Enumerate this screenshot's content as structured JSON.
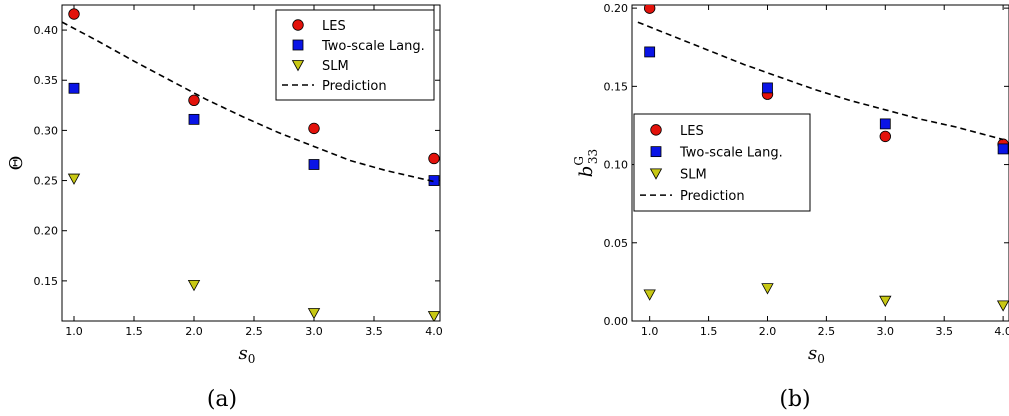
{
  "chart_data": [
    {
      "type": "scatter",
      "panel_label": "(a)",
      "xlabel_main": "s",
      "xlabel_sub": "0",
      "ylabel": "Θ",
      "xlim": [
        0.9,
        4.05
      ],
      "ylim": [
        0.11,
        0.425
      ],
      "xticks": [
        1.0,
        1.5,
        2.0,
        2.5,
        3.0,
        3.5,
        4.0
      ],
      "xtick_labels": [
        "1.0",
        "1.5",
        "2.0",
        "2.5",
        "3.0",
        "3.5",
        "4.0"
      ],
      "yticks": [
        0.15,
        0.2,
        0.25,
        0.3,
        0.35,
        0.4
      ],
      "ytick_labels": [
        "0.15",
        "0.20",
        "0.25",
        "0.30",
        "0.35",
        "0.40"
      ],
      "legend_position": "top-right",
      "series": [
        {
          "name": "LES",
          "marker": "circle",
          "color": "#e3120b",
          "x": [
            1,
            2,
            3,
            4
          ],
          "y": [
            0.416,
            0.33,
            0.302,
            0.272
          ]
        },
        {
          "name": "Two-scale Lang.",
          "marker": "square",
          "color": "#0a14e6",
          "x": [
            1,
            2,
            3,
            4
          ],
          "y": [
            0.342,
            0.311,
            0.266,
            0.25
          ]
        },
        {
          "name": "SLM",
          "marker": "triangle-down",
          "color": "#c8c814",
          "x": [
            1,
            2,
            3,
            4
          ],
          "y": [
            0.252,
            0.146,
            0.118,
            0.115
          ]
        },
        {
          "name": "Prediction",
          "marker": "dashed-line",
          "color": "#000000",
          "x": [
            0.9,
            1.2,
            1.5,
            1.8,
            2.1,
            2.4,
            2.7,
            3.0,
            3.3,
            3.6,
            4.0
          ],
          "y": [
            0.408,
            0.389,
            0.369,
            0.35,
            0.331,
            0.314,
            0.298,
            0.284,
            0.27,
            0.26,
            0.249
          ]
        }
      ]
    },
    {
      "type": "scatter",
      "panel_label": "(b)",
      "xlabel_main": "s",
      "xlabel_sub": "0",
      "ylabel_main": "b",
      "ylabel_sup": "G",
      "ylabel_sub": "33",
      "xlim": [
        0.85,
        4.05
      ],
      "ylim": [
        0.0,
        0.202
      ],
      "xticks": [
        1.0,
        1.5,
        2.0,
        2.5,
        3.0,
        3.5,
        4.0
      ],
      "xtick_labels": [
        "1.0",
        "1.5",
        "2.0",
        "2.5",
        "3.0",
        "3.5",
        "4.0"
      ],
      "yticks": [
        0.0,
        0.05,
        0.1,
        0.15,
        0.2
      ],
      "ytick_labels": [
        "0.00",
        "0.05",
        "0.10",
        "0.15",
        "0.20"
      ],
      "legend_position": "center-left",
      "series": [
        {
          "name": "LES",
          "marker": "circle",
          "color": "#e3120b",
          "x": [
            1,
            2,
            3,
            4
          ],
          "y": [
            0.2,
            0.145,
            0.118,
            0.113
          ]
        },
        {
          "name": "Two-scale Lang.",
          "marker": "square",
          "color": "#0a14e6",
          "x": [
            1,
            2,
            3,
            4
          ],
          "y": [
            0.172,
            0.149,
            0.126,
            0.11
          ]
        },
        {
          "name": "SLM",
          "marker": "triangle-down",
          "color": "#c8c814",
          "x": [
            1,
            2,
            3,
            4
          ],
          "y": [
            0.017,
            0.021,
            0.013,
            0.01
          ]
        },
        {
          "name": "Prediction",
          "marker": "dashed-line",
          "color": "#000000",
          "x": [
            0.9,
            1.2,
            1.5,
            1.8,
            2.1,
            2.4,
            2.7,
            3.0,
            3.3,
            3.6,
            4.0
          ],
          "y": [
            0.191,
            0.182,
            0.173,
            0.164,
            0.156,
            0.148,
            0.141,
            0.135,
            0.129,
            0.124,
            0.116
          ]
        }
      ]
    }
  ]
}
